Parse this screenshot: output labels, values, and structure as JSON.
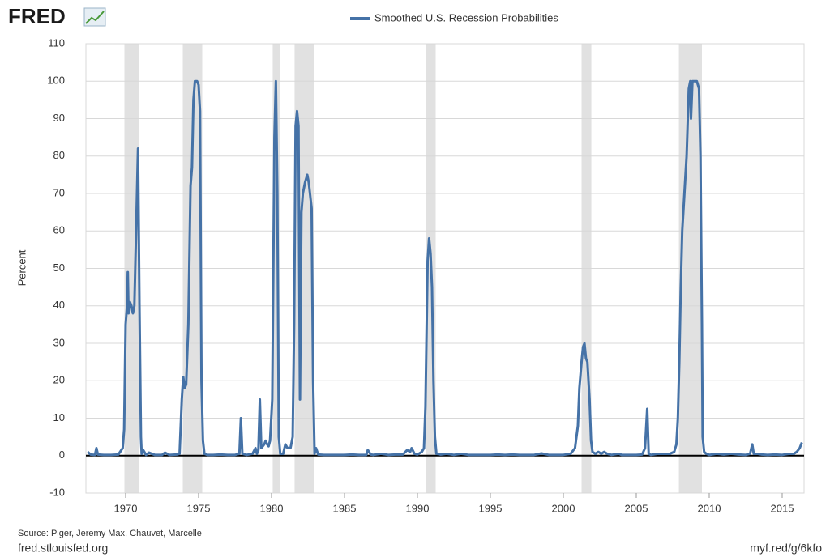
{
  "chart_data": {
    "type": "line",
    "logo": "FRED",
    "legend_position": "top",
    "ylabel": "Percent",
    "source": "Source: Piger, Jeremy Max, Chauvet, Marcelle",
    "site": "fred.stlouisfed.org",
    "short_url": "myf.red/g/6kfo",
    "grid": true,
    "zero_line": true,
    "recession_color": "#e1e1e1",
    "recessions": [
      [
        1969.92,
        1970.92
      ],
      [
        1973.92,
        1975.25
      ],
      [
        1980.08,
        1980.58
      ],
      [
        1981.58,
        1982.92
      ],
      [
        1990.58,
        1991.25
      ],
      [
        2001.25,
        2001.92
      ],
      [
        2007.92,
        2009.5
      ]
    ],
    "xlim": [
      1967.28,
      2016.5
    ],
    "xticks": [
      1970,
      1975,
      1980,
      1985,
      1990,
      1995,
      2000,
      2005,
      2010,
      2015
    ],
    "ylim": [
      -10,
      110
    ],
    "yticks": [
      -10,
      0,
      10,
      20,
      30,
      40,
      50,
      60,
      70,
      80,
      90,
      100,
      110
    ],
    "x": [
      1967.4,
      1967.6,
      1967.9,
      1968.0,
      1968.1,
      1968.5,
      1969.0,
      1969.5,
      1969.8,
      1969.9,
      1970.0,
      1970.1,
      1970.15,
      1970.2,
      1970.3,
      1970.4,
      1970.5,
      1970.6,
      1970.75,
      1970.85,
      1970.95,
      1971.05,
      1971.1,
      1971.2,
      1971.4,
      1971.6,
      1972.0,
      1972.5,
      1972.7,
      1973.0,
      1973.5,
      1973.7,
      1973.85,
      1973.95,
      1974.05,
      1974.15,
      1974.3,
      1974.45,
      1974.55,
      1974.65,
      1974.75,
      1974.9,
      1975.0,
      1975.1,
      1975.2,
      1975.3,
      1975.4,
      1975.6,
      1976.0,
      1976.5,
      1977.0,
      1977.5,
      1977.8,
      1977.9,
      1978.0,
      1978.3,
      1978.7,
      1978.9,
      1979.0,
      1979.1,
      1979.2,
      1979.3,
      1979.5,
      1979.6,
      1979.7,
      1979.8,
      1979.9,
      1980.05,
      1980.2,
      1980.3,
      1980.4,
      1980.5,
      1980.6,
      1980.8,
      1980.95,
      1981.1,
      1981.3,
      1981.45,
      1981.55,
      1981.65,
      1981.75,
      1981.85,
      1981.95,
      1982.05,
      1982.15,
      1982.3,
      1982.45,
      1982.55,
      1982.75,
      1982.85,
      1982.95,
      1983.05,
      1983.2,
      1983.6,
      1984.0,
      1984.5,
      1985.0,
      1985.5,
      1986.0,
      1986.5,
      1986.6,
      1986.8,
      1987.0,
      1987.5,
      1988.0,
      1988.5,
      1989.0,
      1989.3,
      1989.5,
      1989.6,
      1989.8,
      1990.0,
      1990.3,
      1990.45,
      1990.55,
      1990.7,
      1990.8,
      1990.9,
      1991.0,
      1991.1,
      1991.2,
      1991.3,
      1991.6,
      1992.0,
      1992.5,
      1993.0,
      1993.5,
      1994.0,
      1995.0,
      1995.5,
      1996.0,
      1996.5,
      1997.0,
      1998.0,
      1998.5,
      1999.0,
      2000.0,
      2000.5,
      2000.8,
      2001.0,
      2001.1,
      2001.25,
      2001.35,
      2001.45,
      2001.55,
      2001.65,
      2001.8,
      2001.9,
      2002.0,
      2002.2,
      2002.4,
      2002.6,
      2002.8,
      2003.0,
      2003.3,
      2003.8,
      2004.0,
      2004.5,
      2005.0,
      2005.4,
      2005.6,
      2005.75,
      2005.85,
      2006.0,
      2006.5,
      2007.0,
      2007.3,
      2007.6,
      2007.75,
      2007.85,
      2007.95,
      2008.05,
      2008.15,
      2008.3,
      2008.45,
      2008.6,
      2008.7,
      2008.75,
      2008.85,
      2009.0,
      2009.15,
      2009.3,
      2009.4,
      2009.5,
      2009.55,
      2009.65,
      2009.8,
      2010.0,
      2010.5,
      2011.0,
      2011.5,
      2012.0,
      2012.5,
      2012.8,
      2012.95,
      2013.05,
      2013.3,
      2013.6,
      2014.0,
      2014.5,
      2015.0,
      2015.5,
      2015.8,
      2016.0,
      2016.2,
      2016.35
    ],
    "series": [
      {
        "name": "Smoothed U.S. Recession Probabilities",
        "color": "#4572a7",
        "values": [
          1,
          0.3,
          0.2,
          2,
          0.3,
          0.2,
          0.2,
          0.3,
          2,
          7,
          35,
          40,
          49,
          38,
          41,
          40,
          38,
          40,
          65,
          82,
          40,
          5,
          0.5,
          1.5,
          0.2,
          0.8,
          0.2,
          0.2,
          0.8,
          0.2,
          0.3,
          0.5,
          15,
          21,
          18,
          19,
          35,
          72,
          77,
          95,
          100,
          100,
          99,
          92,
          20,
          4,
          0.5,
          0.2,
          0.2,
          0.3,
          0.2,
          0.2,
          0.5,
          10,
          0.5,
          0.2,
          0.5,
          2,
          0.5,
          1.5,
          15,
          2,
          3,
          4,
          3,
          2.5,
          4,
          15,
          85,
          100,
          70,
          5,
          0.5,
          0.5,
          3,
          2,
          2,
          5,
          35,
          88,
          92,
          88,
          15,
          65,
          70,
          73,
          75,
          73,
          66,
          20,
          0.5,
          2,
          0.3,
          0.2,
          0.2,
          0.2,
          0.2,
          0.3,
          0.2,
          0.2,
          1.5,
          0.3,
          0.2,
          0.5,
          0.2,
          0.3,
          0.3,
          1.5,
          1,
          2,
          0.5,
          0.3,
          1,
          2,
          13,
          52,
          58,
          54,
          45,
          20,
          5,
          0.5,
          0.3,
          0.5,
          0.2,
          0.5,
          0.2,
          0.2,
          0.2,
          0.3,
          0.2,
          0.3,
          0.2,
          0.2,
          0.6,
          0.2,
          0.2,
          0.5,
          2,
          8,
          18,
          25,
          29,
          30,
          26,
          25,
          15,
          4,
          1,
          0.5,
          1,
          0.5,
          1,
          0.5,
          0.2,
          0.5,
          0.2,
          0.2,
          0.2,
          0.3,
          2,
          12.5,
          0.5,
          0.2,
          0.5,
          0.5,
          0.5,
          1,
          3,
          10,
          25,
          45,
          60,
          70,
          80,
          98,
          100,
          90,
          100,
          100,
          100,
          98,
          80,
          35,
          5,
          1,
          0.5,
          0.2,
          0.5,
          0.3,
          0.5,
          0.3,
          0.2,
          0.5,
          3,
          0.5,
          0.5,
          0.3,
          0.2,
          0.3,
          0.2,
          0.5,
          0.5,
          1,
          2,
          3.5
        ]
      }
    ]
  }
}
